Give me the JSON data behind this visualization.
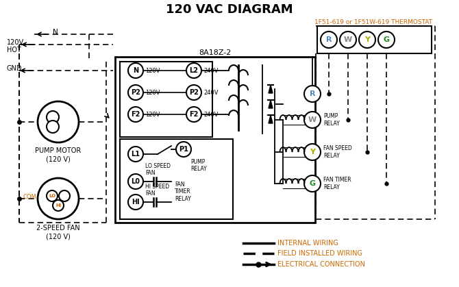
{
  "title": "120 VAC DIAGRAM",
  "title_color": "#000000",
  "title_fontsize": 13,
  "background_color": "#ffffff",
  "thermostat_label": "1F51-619 or 1F51W-619 THERMOSTAT",
  "orange": "#cc6600",
  "control_box_label": "8A18Z-2",
  "pump_motor_label": "PUMP MOTOR\n(120 V)",
  "fan_label": "2-SPEED FAN\n(120 V)",
  "legend_items": [
    "INTERNAL WIRING",
    "FIELD INSTALLED WIRING",
    "ELECTRICAL CONNECTION"
  ],
  "fig_w": 6.7,
  "fig_h": 4.19,
  "dpi": 100
}
